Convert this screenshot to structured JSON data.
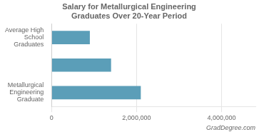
{
  "chart_data": {
    "type": "bar",
    "orientation": "horizontal",
    "title": "Salary for Metallurgical Engineering\nGraduates Over 20-Year Period",
    "categories": [
      "Average High\nSchool\nGraduates",
      null,
      "Metallurgical\nEngineering\nGraduate"
    ],
    "values": [
      900000,
      1400000,
      2100000
    ],
    "color": "#5b9eb8",
    "xlim": [
      0,
      4800000
    ],
    "xticks": [
      0,
      {
        "value": 2000000,
        "label": "2,000,000"
      },
      {
        "value": 4000000,
        "label": "4,000,000"
      }
    ],
    "grid": true,
    "annotations": [
      "GradDegree.com"
    ]
  }
}
